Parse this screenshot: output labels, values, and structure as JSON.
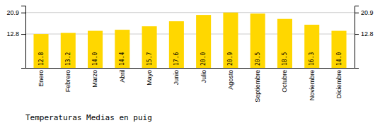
{
  "chart_data": {
    "type": "bar",
    "title": "Temperaturas Medias en puig",
    "categories": [
      "Enero",
      "Febrero",
      "Marzo",
      "Abril",
      "Mayo",
      "Junio",
      "Julio",
      "Agosto",
      "Septiembre",
      "Octubre",
      "Noviembre",
      "Diciembre"
    ],
    "values": [
      12.8,
      13.2,
      14.0,
      14.4,
      15.7,
      17.6,
      20.0,
      20.9,
      20.5,
      18.5,
      16.3,
      14.0
    ],
    "value_labels": [
      "12.8",
      "13.2",
      "14.0",
      "14.4",
      "15.7",
      "17.6",
      "20.0",
      "20.9",
      "20.5",
      "18.5",
      "16.3",
      "14.0"
    ],
    "data_labels": true,
    "color": "#FFD700",
    "ylim": [
      0.0,
      23.5
    ],
    "yticks": [
      12.8,
      20.9
    ],
    "grid": true
  }
}
